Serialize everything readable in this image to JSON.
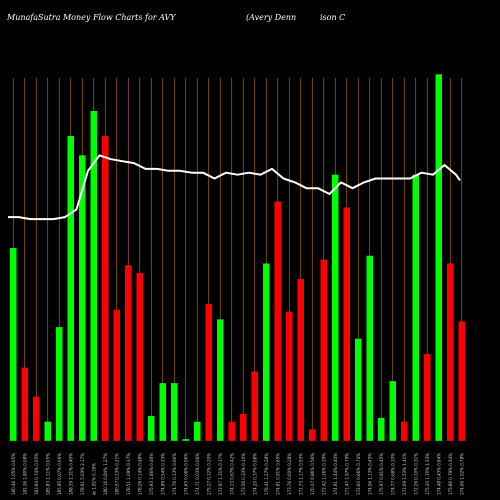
{
  "header": {
    "left": "MunafaSutra  Money Flow  Charts for AVY",
    "right_a": "(Avery Denn",
    "right_b": "ison  C"
  },
  "chart_data": {
    "type": "bar",
    "title": "MunafaSutra  Money Flow  Charts for AVY",
    "ylim": [
      0,
      100
    ],
    "colors": {
      "up": "#00ff00",
      "down": "#ff0000",
      "line": "#ffffff",
      "grid": "#c8780a",
      "background": "#000000"
    },
    "bars": [
      {
        "label": "180.46 1.05% 0.05%",
        "value": 50,
        "color": "up"
      },
      {
        "label": "182.36 1.80% 0.08%",
        "value": 19,
        "color": "down"
      },
      {
        "label": "183.94 0.74% 0.05%",
        "value": 11.5,
        "color": "down"
      },
      {
        "label": "185.83 1.11% 0.05%",
        "value": 5,
        "color": "up"
      },
      {
        "label": "185.95 0.07% 0.06%",
        "value": 29.5,
        "color": "up"
      },
      {
        "label": "188.39 1.31% 0.40%",
        "value": 79,
        "color": "up"
      },
      {
        "label": "178.91 5.03% 2.17%",
        "value": 74,
        "color": "up"
      },
      {
        "label": "at 1.81% 0.16%",
        "value": 85.5,
        "color": "up"
      },
      {
        "label": "180.16 0.84% 1.27%",
        "value": 79,
        "color": "down"
      },
      {
        "label": "180.57 0.23% 0.21%",
        "value": 34,
        "color": "down"
      },
      {
        "label": "178.51 1.09% 0.37%",
        "value": 45.5,
        "color": "down"
      },
      {
        "label": "178.26 0.14% 0.48%",
        "value": 43.5,
        "color": "down"
      },
      {
        "label": "175.93 1.66% 0.46%",
        "value": 6.5,
        "color": "up"
      },
      {
        "label": "174.99 0.54% 0.33%",
        "value": 15,
        "color": "up"
      },
      {
        "label": "174.76 0.13% 0.06%",
        "value": 15,
        "color": "up"
      },
      {
        "label": "174.65 0.06% 0.06%",
        "value": 0.5,
        "color": "up"
      },
      {
        "label": "174.71 0.03% 0.06%",
        "value": 5,
        "color": "up"
      },
      {
        "label": "175.27 0.32% 0.20%",
        "value": 35.5,
        "color": "down"
      },
      {
        "label": "172.97 1.31% 0.37%",
        "value": 31.5,
        "color": "up"
      },
      {
        "label": "174.13 0.67% 0.42%",
        "value": 5,
        "color": "down"
      },
      {
        "label": "173.56 0.33% 0.10%",
        "value": 7,
        "color": "down"
      },
      {
        "label": "174.20 0.37% 0.08%",
        "value": 18,
        "color": "down"
      },
      {
        "label": "176.41 1.27% 0.28%",
        "value": 46,
        "color": "up"
      },
      {
        "label": "174.81 0.91% 0.65%",
        "value": 62,
        "color": "down"
      },
      {
        "label": "173.76 0.60% 0.28%",
        "value": 33.5,
        "color": "down"
      },
      {
        "label": "171.73 1.17% 0.53%",
        "value": 42,
        "color": "down"
      },
      {
        "label": "170.27 0.86% 0.56%",
        "value": 3,
        "color": "down"
      },
      {
        "label": "172.42 1.26% 0.39%",
        "value": 47,
        "color": "down"
      },
      {
        "label": "174.91 1.44% 0.44%",
        "value": 69,
        "color": "up"
      },
      {
        "label": "171.47 1.97% 0.79%",
        "value": 60.5,
        "color": "down"
      },
      {
        "label": "172.60 0.66% 0.74%",
        "value": 26.5,
        "color": "up"
      },
      {
        "label": "174.56 1.13% 0.45%",
        "value": 48,
        "color": "up"
      },
      {
        "label": "175.97 0.81% 0.45%",
        "value": 6,
        "color": "up"
      },
      {
        "label": "174.77 0.68% 0.10%",
        "value": 15.5,
        "color": "up"
      },
      {
        "label": "172.09 1.53% 1.41%",
        "value": 5,
        "color": "down"
      },
      {
        "label": "172.26 0.10% 0.31%",
        "value": 69,
        "color": "up"
      },
      {
        "label": "175.20 1.70% 1.33%",
        "value": 22.5,
        "color": "down"
      },
      {
        "label": "174.48 0.43% 0.84%",
        "value": 95,
        "color": "up"
      },
      {
        "label": "175.86 0.79% 0.34%",
        "value": 46,
        "color": "down"
      },
      {
        "label": "174.06 1.02% 0.78%",
        "value": 31,
        "color": "down"
      }
    ],
    "line": [
      58,
      58,
      57.5,
      57.5,
      57.5,
      58,
      60,
      70,
      74,
      73,
      72.5,
      72,
      70.5,
      70.5,
      70,
      70,
      69.5,
      69.5,
      68,
      69.5,
      69,
      69.5,
      69,
      70.5,
      68,
      67,
      65.5,
      65.5,
      64,
      67,
      65.5,
      67,
      68,
      68,
      68,
      68,
      69.5,
      69,
      71.5,
      69,
      67.5
    ]
  }
}
